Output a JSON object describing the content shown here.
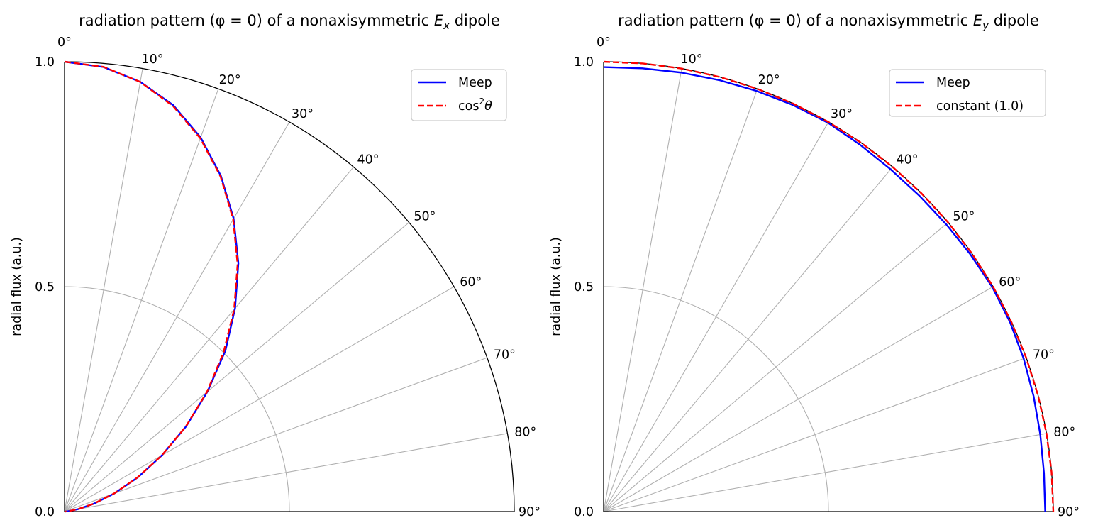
{
  "chart_data": [
    {
      "type": "line",
      "projection": "polar-quadrant",
      "title": {
        "prefix": "radiation pattern (φ = 0) of a nonaxisymmetric ",
        "var": "E",
        "sub": "x",
        "suffix": " dipole"
      },
      "ylabel": "radial flux (a.u.)",
      "theta_range_deg": [
        0,
        90
      ],
      "r_range": [
        0,
        1.0
      ],
      "r_ticks": [
        "0.0",
        "0.5",
        "1.0"
      ],
      "theta_ticks": [
        "0°",
        "10°",
        "20°",
        "30°",
        "40°",
        "50°",
        "60°",
        "70°",
        "80°",
        "90°"
      ],
      "grid": true,
      "legend_position": "upper-right",
      "series": [
        {
          "name": "Meep",
          "color": "#0000ff",
          "style": "solid",
          "theta_deg": [
            0,
            5,
            10,
            15,
            20,
            25,
            30,
            35,
            40,
            45,
            50,
            55,
            60,
            65,
            70,
            75,
            80,
            85,
            90
          ],
          "r": [
            1.0,
            0.992,
            0.97,
            0.935,
            0.885,
            0.823,
            0.752,
            0.674,
            0.59,
            0.506,
            0.415,
            0.33,
            0.25,
            0.18,
            0.118,
            0.068,
            0.031,
            0.008,
            0.0
          ]
        },
        {
          "name": "cos²θ",
          "name_parts": {
            "base": "cos",
            "sup": "2",
            "var": "θ"
          },
          "color": "#ff0000",
          "style": "dashed",
          "theta_deg": [
            0,
            5,
            10,
            15,
            20,
            25,
            30,
            35,
            40,
            45,
            50,
            55,
            60,
            65,
            70,
            75,
            80,
            85,
            90
          ],
          "r": [
            1.0,
            0.9924,
            0.9698,
            0.933,
            0.883,
            0.8214,
            0.75,
            0.671,
            0.5868,
            0.5,
            0.4132,
            0.329,
            0.25,
            0.1786,
            0.117,
            0.067,
            0.0302,
            0.0076,
            0.0
          ]
        }
      ]
    },
    {
      "type": "line",
      "projection": "polar-quadrant",
      "title": {
        "prefix": "radiation pattern (φ = 0) of a nonaxisymmetric ",
        "var": "E",
        "sub": "y",
        "suffix": " dipole"
      },
      "ylabel": "radial flux (a.u.)",
      "theta_range_deg": [
        0,
        90
      ],
      "r_range": [
        0,
        1.0
      ],
      "r_ticks": [
        "0.0",
        "0.5",
        "1.0"
      ],
      "theta_ticks": [
        "0°",
        "10°",
        "20°",
        "30°",
        "40°",
        "50°",
        "60°",
        "70°",
        "80°",
        "90°"
      ],
      "grid": true,
      "legend_position": "upper-right",
      "series": [
        {
          "name": "Meep",
          "color": "#0000ff",
          "style": "solid",
          "theta_deg": [
            0,
            5,
            10,
            15,
            20,
            25,
            30,
            35,
            40,
            45,
            50,
            55,
            60,
            65,
            70,
            75,
            80,
            85,
            90
          ],
          "r": [
            0.988,
            0.989,
            0.991,
            0.993,
            0.995,
            0.997,
            0.998,
            0.995,
            0.993,
            0.993,
            0.994,
            0.996,
            0.998,
            0.997,
            0.994,
            0.99,
            0.986,
            0.983,
            0.982
          ]
        },
        {
          "name": "constant (1.0)",
          "color": "#ff0000",
          "style": "dashed",
          "theta_deg": [
            0,
            5,
            10,
            15,
            20,
            25,
            30,
            35,
            40,
            45,
            50,
            55,
            60,
            65,
            70,
            75,
            80,
            85,
            90
          ],
          "r": [
            1.0,
            1.0,
            1.0,
            1.0,
            1.0,
            1.0,
            1.0,
            1.0,
            1.0,
            1.0,
            1.0,
            1.0,
            1.0,
            1.0,
            1.0,
            1.0,
            1.0,
            1.0,
            1.0
          ]
        }
      ]
    }
  ]
}
